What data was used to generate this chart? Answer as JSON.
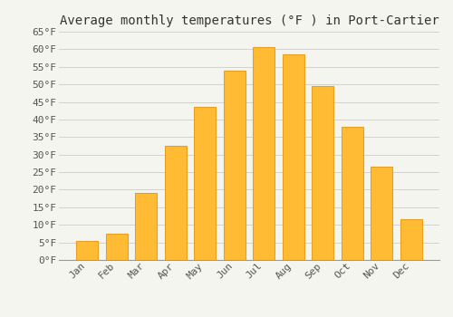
{
  "title": "Average monthly temperatures (°F ) in Port-Cartier",
  "months": [
    "Jan",
    "Feb",
    "Mar",
    "Apr",
    "May",
    "Jun",
    "Jul",
    "Aug",
    "Sep",
    "Oct",
    "Nov",
    "Dec"
  ],
  "values": [
    5.5,
    7.5,
    19.0,
    32.5,
    43.5,
    54.0,
    60.5,
    58.5,
    49.5,
    38.0,
    26.5,
    11.5
  ],
  "bar_color": "#FFBB33",
  "bar_edge_color": "#E8A020",
  "background_color": "#F5F5F0",
  "grid_color": "#CCCCCC",
  "ylim": [
    0,
    65
  ],
  "yticks": [
    0,
    5,
    10,
    15,
    20,
    25,
    30,
    35,
    40,
    45,
    50,
    55,
    60,
    65
  ],
  "ytick_labels": [
    "0°F",
    "5°F",
    "10°F",
    "15°F",
    "20°F",
    "25°F",
    "30°F",
    "35°F",
    "40°F",
    "45°F",
    "50°F",
    "55°F",
    "60°F",
    "65°F"
  ],
  "title_fontsize": 10,
  "tick_fontsize": 8,
  "figsize": [
    5.0,
    3.5
  ],
  "dpi": 100
}
